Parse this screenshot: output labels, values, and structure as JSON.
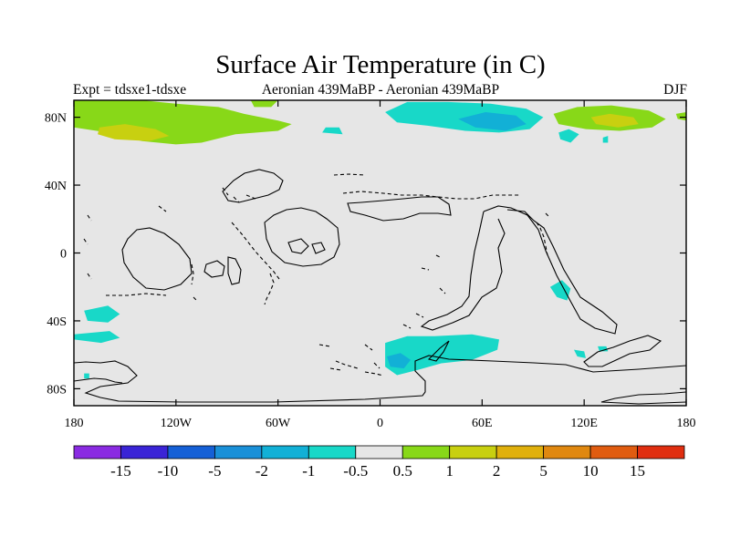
{
  "chart_data": {
    "type": "heatmap",
    "title": "Surface Air Temperature (in C)",
    "subtitle_left": "Expt = tdsxe1-tdsxe",
    "subtitle_center": "Aeronian 439MaBP - Aeronian 439MaBP",
    "subtitle_right": "DJF",
    "projection": "cylindrical equidistant",
    "xlim": [
      -180,
      180
    ],
    "ylim": [
      -90,
      90
    ],
    "x_ticks": [
      {
        "value": -180,
        "label": "180"
      },
      {
        "value": -120,
        "label": "120W"
      },
      {
        "value": -60,
        "label": "60W"
      },
      {
        "value": 0,
        "label": "0"
      },
      {
        "value": 60,
        "label": "60E"
      },
      {
        "value": 120,
        "label": "120E"
      },
      {
        "value": 180,
        "label": "180"
      }
    ],
    "y_ticks": [
      {
        "value": 80,
        "label": "80N"
      },
      {
        "value": 40,
        "label": "40N"
      },
      {
        "value": 0,
        "label": "0"
      },
      {
        "value": -40,
        "label": "40S"
      },
      {
        "value": -80,
        "label": "80S"
      }
    ],
    "colorbar": {
      "levels": [
        "-15",
        "-10",
        "-5",
        "-2",
        "-1",
        "-0.5",
        "0.5",
        "1",
        "2",
        "5",
        "10",
        "15"
      ],
      "colors": [
        "#8a2be2",
        "#3a24d6",
        "#1560d6",
        "#1a90d8",
        "#12b0d6",
        "#18d8c8",
        "#e6e6e6",
        "#88d818",
        "#c8d010",
        "#e0b00c",
        "#e08810",
        "#e05c10",
        "#e02e10"
      ]
    },
    "anomaly_regions": [
      {
        "name": "arctic-pacific-warm",
        "bin": 7,
        "points": [
          [
            -180,
            90
          ],
          [
            -140,
            90
          ],
          [
            -120,
            88
          ],
          [
            -95,
            86
          ],
          [
            -80,
            82
          ],
          [
            -60,
            78
          ],
          [
            -52,
            76
          ],
          [
            -60,
            72
          ],
          [
            -85,
            70
          ],
          [
            -105,
            65
          ],
          [
            -120,
            64
          ],
          [
            -140,
            66
          ],
          [
            -160,
            71
          ],
          [
            -180,
            74
          ]
        ]
      },
      {
        "name": "arctic-pacific-warm-core",
        "bin": 8,
        "points": [
          [
            -165,
            74
          ],
          [
            -150,
            76
          ],
          [
            -132,
            73
          ],
          [
            -124,
            69
          ],
          [
            -136,
            66
          ],
          [
            -156,
            67
          ],
          [
            -166,
            70
          ]
        ]
      },
      {
        "name": "arctic-east-warm",
        "bin": 7,
        "points": [
          [
            102,
            82
          ],
          [
            116,
            86
          ],
          [
            136,
            87
          ],
          [
            158,
            84
          ],
          [
            168,
            79
          ],
          [
            160,
            74
          ],
          [
            141,
            72
          ],
          [
            121,
            73
          ],
          [
            105,
            76
          ]
        ]
      },
      {
        "name": "arctic-east-warm-core",
        "bin": 8,
        "points": [
          [
            124,
            80
          ],
          [
            135,
            82
          ],
          [
            149,
            80
          ],
          [
            152,
            76
          ],
          [
            140,
            74
          ],
          [
            127,
            76
          ]
        ]
      },
      {
        "name": "arctic-east-small-warm",
        "bin": 7,
        "points": [
          [
            174,
            82
          ],
          [
            180,
            83
          ],
          [
            180,
            78
          ],
          [
            175,
            79
          ]
        ]
      },
      {
        "name": "arctic-pacific-small-warm",
        "bin": 7,
        "points": [
          [
            -76,
            90
          ],
          [
            -60,
            90
          ],
          [
            -64,
            86
          ],
          [
            -74,
            86
          ]
        ]
      },
      {
        "name": "arctic-center-cool",
        "bin": 5,
        "points": [
          [
            3,
            83
          ],
          [
            16,
            89
          ],
          [
            40,
            89
          ],
          [
            65,
            88
          ],
          [
            86,
            85
          ],
          [
            96,
            80
          ],
          [
            88,
            73
          ],
          [
            70,
            71
          ],
          [
            50,
            72
          ],
          [
            28,
            75
          ],
          [
            10,
            77
          ]
        ]
      },
      {
        "name": "arctic-center-cool-core",
        "bin": 4,
        "points": [
          [
            46,
            79
          ],
          [
            62,
            83
          ],
          [
            80,
            81
          ],
          [
            86,
            76
          ],
          [
            74,
            72
          ],
          [
            56,
            74
          ]
        ]
      },
      {
        "name": "arctic-north-cool",
        "bin": 5,
        "points": [
          [
            -32,
            74
          ],
          [
            -24,
            74
          ],
          [
            -22,
            70
          ],
          0,
          [
            -34,
            71
          ]
        ]
      },
      {
        "name": "arctic-east-cool",
        "bin": 5,
        "points": [
          [
            105,
            71
          ],
          [
            111,
            73
          ],
          [
            117,
            70
          ],
          [
            112,
            65
          ],
          [
            106,
            67
          ]
        ]
      },
      {
        "name": "arctic-farright-cool",
        "bin": 5,
        "points": [
          [
            131,
            68
          ],
          [
            134,
            69
          ],
          [
            134,
            65
          ],
          [
            131,
            65
          ]
        ]
      },
      {
        "name": "southern-east-cool",
        "bin": 5,
        "points": [
          [
            100,
            -20
          ],
          [
            107,
            -16
          ],
          [
            112,
            -21
          ],
          [
            110,
            -28
          ],
          [
            104,
            -26
          ]
        ]
      },
      {
        "name": "southern-west-cool",
        "bin": 5,
        "points": [
          [
            -174,
            -34
          ],
          [
            -160,
            -31
          ],
          [
            -153,
            -36
          ],
          [
            -160,
            -41
          ],
          [
            -172,
            -40
          ]
        ]
      },
      {
        "name": "southern-west-small-cool",
        "bin": 5,
        "points": [
          [
            -180,
            -48
          ],
          [
            -159,
            -46
          ],
          [
            -153,
            -50
          ],
          [
            -164,
            -53
          ],
          [
            -180,
            -51
          ]
        ]
      },
      {
        "name": "southern-ocean-cool",
        "bin": 5,
        "points": [
          [
            3,
            -53
          ],
          [
            16,
            -49
          ],
          [
            32,
            -49
          ],
          [
            54,
            -48
          ],
          [
            70,
            -51
          ],
          [
            69,
            -57
          ],
          [
            54,
            -63
          ],
          [
            36,
            -65
          ],
          [
            22,
            -69
          ],
          [
            10,
            -72
          ],
          [
            3,
            -67
          ]
        ]
      },
      {
        "name": "southern-ocean-cool-core",
        "bin": 4,
        "points": [
          [
            4,
            -61
          ],
          [
            12,
            -59
          ],
          [
            18,
            -63
          ],
          [
            14,
            -68
          ],
          [
            6,
            -67
          ]
        ]
      },
      {
        "name": "southern-east-small-cool",
        "bin": 5,
        "points": [
          [
            114,
            -57
          ],
          [
            120,
            -58
          ],
          [
            121,
            -62
          ],
          [
            116,
            -61
          ]
        ]
      },
      {
        "name": "southern-far-east-cool",
        "bin": 5,
        "points": [
          [
            128,
            -55
          ],
          [
            133,
            -55
          ],
          [
            134,
            -58
          ],
          [
            129,
            -58
          ]
        ]
      },
      {
        "name": "southern-far-west-small",
        "bin": 5,
        "points": [
          [
            -174,
            -71
          ],
          [
            -171,
            -71
          ],
          [
            -171,
            -74
          ],
          [
            -174,
            -74
          ]
        ]
      }
    ]
  }
}
